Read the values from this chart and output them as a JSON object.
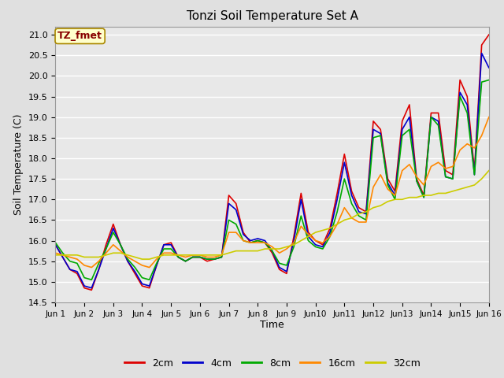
{
  "title": "Tonzi Soil Temperature Set A",
  "xlabel": "Time",
  "ylabel": "Soil Temperature (C)",
  "annotation_text": "TZ_fmet",
  "annotation_color": "#880000",
  "annotation_bg": "#ffffcc",
  "annotation_border": "#aa8800",
  "ylim": [
    14.5,
    21.2
  ],
  "xlim": [
    0,
    15
  ],
  "xtick_labels": [
    "Jun 1",
    "Jun 2",
    "Jun 3",
    "Jun 4",
    "Jun 5",
    "Jun 6",
    "Jun 7",
    "Jun 8",
    "Jun 9",
    "Jun10",
    "Jun11",
    "Jun12",
    "Jun13",
    "Jun14",
    "Jun15",
    "Jun 16"
  ],
  "bg_color": "#e0e0e0",
  "plot_bg_color": "#e8e8e8",
  "grid_color": "#ffffff",
  "series_colors": [
    "#dd0000",
    "#0000cc",
    "#00aa00",
    "#ff8800",
    "#cccc00"
  ],
  "series_labels": [
    "2cm",
    "4cm",
    "8cm",
    "16cm",
    "32cm"
  ],
  "series_linewidth": 1.2,
  "legend_linewidth": 2.0,
  "x": [
    0,
    0.25,
    0.5,
    0.75,
    1.0,
    1.25,
    1.5,
    1.75,
    2.0,
    2.25,
    2.5,
    2.75,
    3.0,
    3.25,
    3.5,
    3.75,
    4.0,
    4.25,
    4.5,
    4.75,
    5.0,
    5.25,
    5.5,
    5.75,
    6.0,
    6.25,
    6.5,
    6.75,
    7.0,
    7.25,
    7.5,
    7.75,
    8.0,
    8.25,
    8.5,
    8.75,
    9.0,
    9.25,
    9.5,
    9.75,
    10.0,
    10.25,
    10.5,
    10.75,
    11.0,
    11.25,
    11.5,
    11.75,
    12.0,
    12.25,
    12.5,
    12.75,
    13.0,
    13.25,
    13.5,
    13.75,
    14.0,
    14.25,
    14.5,
    14.75,
    15.0
  ],
  "y_2cm": [
    15.9,
    15.6,
    15.3,
    15.2,
    14.85,
    14.8,
    15.3,
    15.9,
    16.4,
    15.9,
    15.5,
    15.2,
    14.9,
    14.85,
    15.4,
    15.9,
    15.95,
    15.6,
    15.5,
    15.6,
    15.6,
    15.5,
    15.55,
    15.6,
    17.1,
    16.9,
    16.2,
    15.95,
    16.0,
    15.95,
    15.7,
    15.3,
    15.2,
    16.1,
    17.15,
    16.2,
    16.0,
    15.9,
    16.3,
    17.15,
    18.1,
    17.2,
    16.8,
    16.7,
    18.9,
    18.7,
    17.5,
    17.2,
    18.9,
    19.3,
    17.5,
    17.1,
    19.1,
    19.1,
    17.7,
    17.6,
    19.9,
    19.5,
    17.7,
    20.75,
    21.0
  ],
  "y_4cm": [
    15.9,
    15.6,
    15.3,
    15.25,
    14.9,
    14.85,
    15.3,
    15.8,
    16.3,
    15.9,
    15.5,
    15.25,
    14.95,
    14.9,
    15.4,
    15.9,
    15.9,
    15.6,
    15.5,
    15.6,
    15.6,
    15.55,
    15.55,
    15.6,
    16.9,
    16.75,
    16.15,
    16.0,
    16.05,
    16.0,
    15.75,
    15.35,
    15.25,
    16.0,
    17.0,
    16.1,
    15.9,
    15.85,
    16.2,
    17.0,
    17.9,
    17.1,
    16.7,
    16.65,
    18.7,
    18.6,
    17.4,
    17.1,
    18.7,
    19.0,
    17.45,
    17.05,
    19.0,
    18.9,
    17.55,
    17.5,
    19.6,
    19.3,
    17.6,
    20.55,
    20.2
  ],
  "y_8cm": [
    15.95,
    15.7,
    15.5,
    15.45,
    15.1,
    15.05,
    15.45,
    15.8,
    16.2,
    15.9,
    15.55,
    15.35,
    15.1,
    15.05,
    15.45,
    15.8,
    15.8,
    15.6,
    15.5,
    15.6,
    15.6,
    15.55,
    15.55,
    15.6,
    16.5,
    16.4,
    16.0,
    15.95,
    16.0,
    15.95,
    15.75,
    15.45,
    15.4,
    15.85,
    16.6,
    16.0,
    15.85,
    15.8,
    16.1,
    16.7,
    17.5,
    16.9,
    16.6,
    16.5,
    18.5,
    18.55,
    17.35,
    17.0,
    18.55,
    18.7,
    17.45,
    17.05,
    19.0,
    18.8,
    17.55,
    17.5,
    19.5,
    19.1,
    17.6,
    19.85,
    19.9
  ],
  "y_16cm": [
    15.7,
    15.65,
    15.6,
    15.55,
    15.4,
    15.35,
    15.5,
    15.7,
    15.9,
    15.75,
    15.6,
    15.5,
    15.4,
    15.35,
    15.55,
    15.7,
    15.7,
    15.65,
    15.6,
    15.65,
    15.65,
    15.6,
    15.6,
    15.65,
    16.2,
    16.2,
    16.0,
    15.95,
    15.95,
    15.95,
    15.85,
    15.7,
    15.8,
    15.95,
    16.35,
    16.15,
    16.0,
    15.95,
    16.1,
    16.4,
    16.8,
    16.55,
    16.45,
    16.45,
    17.3,
    17.6,
    17.25,
    17.1,
    17.7,
    17.85,
    17.55,
    17.35,
    17.8,
    17.9,
    17.75,
    17.8,
    18.2,
    18.35,
    18.25,
    18.55,
    19.0
  ],
  "y_32cm": [
    15.65,
    15.65,
    15.65,
    15.65,
    15.6,
    15.6,
    15.6,
    15.65,
    15.7,
    15.7,
    15.65,
    15.6,
    15.55,
    15.55,
    15.6,
    15.65,
    15.65,
    15.65,
    15.65,
    15.65,
    15.65,
    15.65,
    15.65,
    15.65,
    15.7,
    15.75,
    15.75,
    15.75,
    15.75,
    15.8,
    15.8,
    15.8,
    15.85,
    15.9,
    16.0,
    16.1,
    16.2,
    16.25,
    16.3,
    16.4,
    16.5,
    16.55,
    16.65,
    16.7,
    16.8,
    16.85,
    16.95,
    17.0,
    17.0,
    17.05,
    17.05,
    17.1,
    17.1,
    17.15,
    17.15,
    17.2,
    17.25,
    17.3,
    17.35,
    17.5,
    17.7
  ],
  "yticks": [
    14.5,
    15.0,
    15.5,
    16.0,
    16.5,
    17.0,
    17.5,
    18.0,
    18.5,
    19.0,
    19.5,
    20.0,
    20.5,
    21.0
  ]
}
